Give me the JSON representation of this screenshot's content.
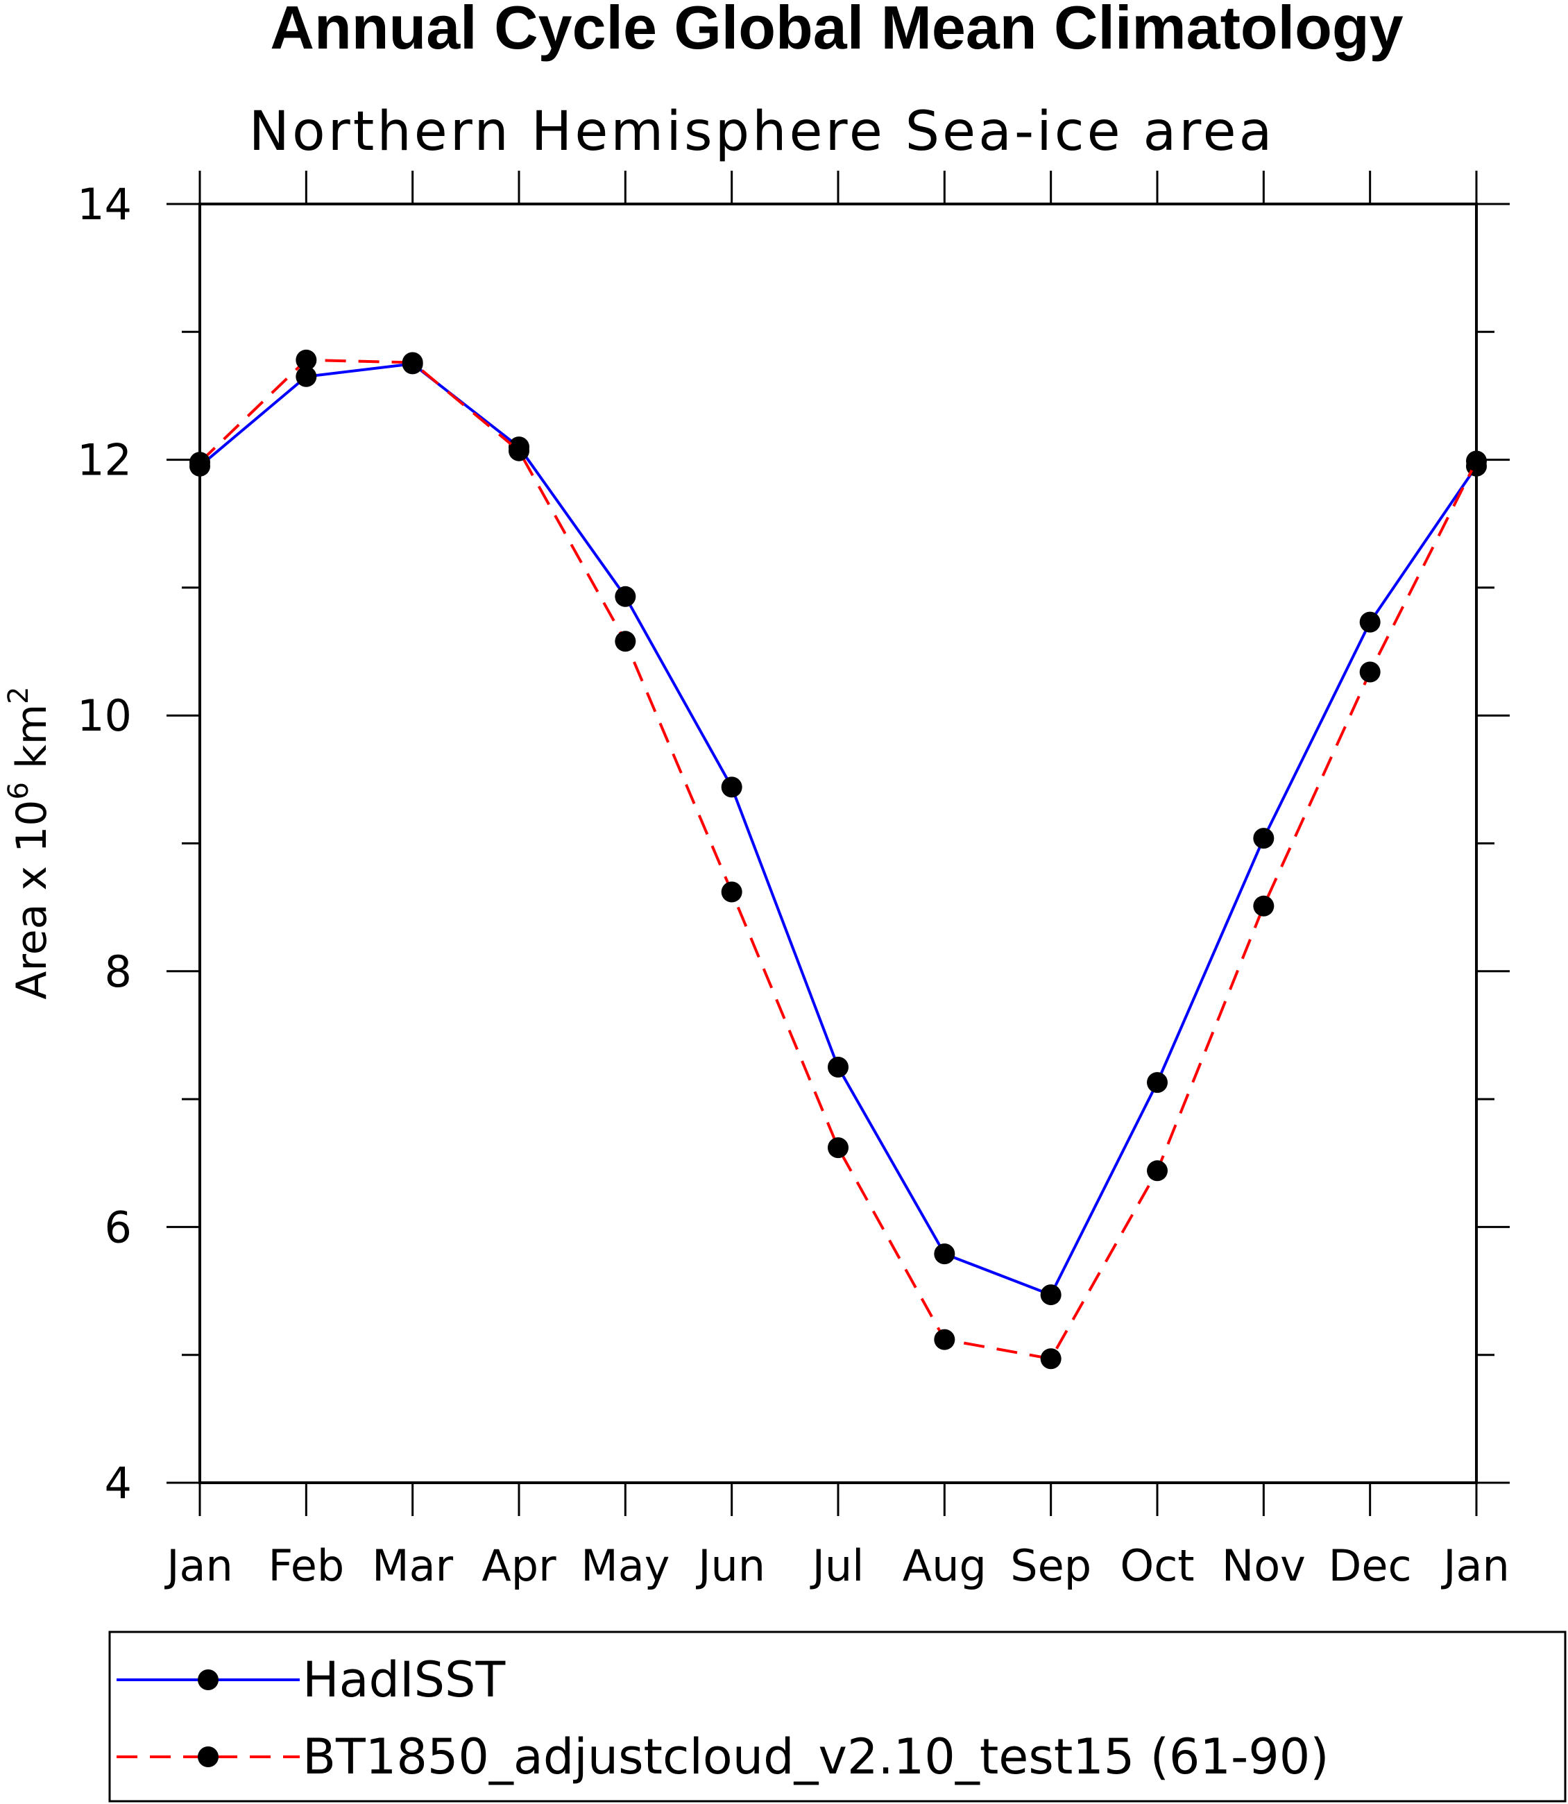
{
  "chart_data": {
    "type": "line",
    "title": "Annual Cycle Global Mean Climatology",
    "subtitle": "Northern Hemisphere Sea-ice area",
    "ylabel": "Area x 10",
    "ylabel_exp": "6",
    "ylabel_unit": " km",
    "ylabel_unit_exp": "2",
    "ylim": [
      4,
      14
    ],
    "yticks": [
      4,
      6,
      8,
      10,
      12,
      14
    ],
    "categories": [
      "Jan",
      "Feb",
      "Mar",
      "Apr",
      "May",
      "Jun",
      "Jul",
      "Aug",
      "Sep",
      "Oct",
      "Nov",
      "Dec",
      "Jan"
    ],
    "series": [
      {
        "name": "HadISST",
        "color": "#0000ff",
        "dash": "solid",
        "values": [
          11.95,
          12.65,
          12.75,
          12.1,
          10.93,
          9.44,
          7.25,
          5.79,
          5.47,
          7.13,
          9.04,
          10.73,
          11.95
        ]
      },
      {
        "name": "BT1850_adjustcloud_v2.10_test15 (61-90)",
        "color": "#ff0000",
        "dash": "dashed",
        "values": [
          11.98,
          12.78,
          12.76,
          12.07,
          10.58,
          8.62,
          6.62,
          5.12,
          4.97,
          6.44,
          8.51,
          10.34,
          11.99
        ]
      }
    ],
    "legend_position": "bottom",
    "grid": false
  }
}
